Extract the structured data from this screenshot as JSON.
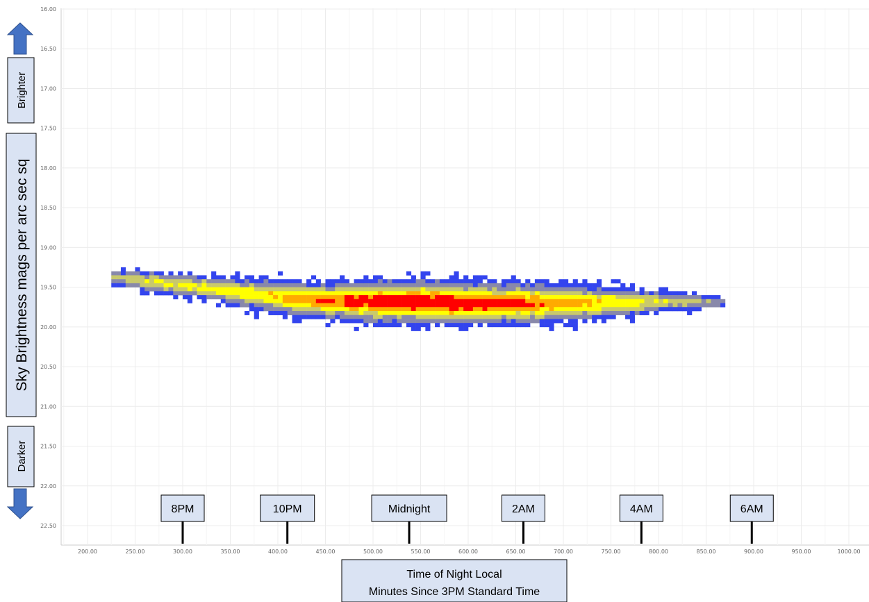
{
  "chart_data": {
    "type": "heatmap",
    "title": "",
    "xlabel": "Time of Night Local",
    "xlabel_sub": "Minutes Since 3PM Standard Time",
    "ylabel": "Sky Brightness mags per arc sec sq",
    "xlim": [
      175,
      1020
    ],
    "ylim": [
      16.0,
      22.75
    ],
    "y_inverted": true,
    "grid": true,
    "x_ticks": [
      "200.00",
      "250.00",
      "300.00",
      "350.00",
      "400.00",
      "450.00",
      "500.00",
      "550.00",
      "600.00",
      "650.00",
      "700.00",
      "750.00",
      "800.00",
      "850.00",
      "900.00",
      "950.00",
      "1000.00"
    ],
    "y_ticks": [
      "16.00",
      "16.50",
      "17.00",
      "17.50",
      "18.00",
      "18.50",
      "19.00",
      "19.50",
      "20.00",
      "20.50",
      "21.00",
      "21.50",
      "22.00",
      "22.50"
    ],
    "time_markers": [
      {
        "label": "8PM",
        "x": 300
      },
      {
        "label": "10PM",
        "x": 410
      },
      {
        "label": "Midnight",
        "x": 538
      },
      {
        "label": "2AM",
        "x": 658
      },
      {
        "label": "4AM",
        "x": 782
      },
      {
        "label": "6AM",
        "x": 898
      }
    ],
    "annotations": {
      "brighter": "Brighter",
      "darker": "Darker"
    },
    "density_profile": [
      {
        "x": 225,
        "center": 19.35,
        "spread": 0.07,
        "peak": 0.35
      },
      {
        "x": 260,
        "center": 19.4,
        "spread": 0.09,
        "peak": 0.5
      },
      {
        "x": 320,
        "center": 19.48,
        "spread": 0.1,
        "peak": 0.55
      },
      {
        "x": 380,
        "center": 19.58,
        "spread": 0.13,
        "peak": 0.65
      },
      {
        "x": 440,
        "center": 19.64,
        "spread": 0.15,
        "peak": 0.8
      },
      {
        "x": 500,
        "center": 19.66,
        "spread": 0.17,
        "peak": 0.95
      },
      {
        "x": 560,
        "center": 19.67,
        "spread": 0.18,
        "peak": 1.0
      },
      {
        "x": 620,
        "center": 19.68,
        "spread": 0.17,
        "peak": 0.95
      },
      {
        "x": 680,
        "center": 19.68,
        "spread": 0.16,
        "peak": 0.8
      },
      {
        "x": 740,
        "center": 19.67,
        "spread": 0.14,
        "peak": 0.65
      },
      {
        "x": 800,
        "center": 19.66,
        "spread": 0.09,
        "peak": 0.5
      },
      {
        "x": 840,
        "center": 19.66,
        "spread": 0.06,
        "peak": 0.35
      },
      {
        "x": 865,
        "center": 19.66,
        "spread": 0.05,
        "peak": 0.22
      }
    ],
    "colorscale": [
      "#3344ee",
      "#8888aa",
      "#c9c96b",
      "#ffff00",
      "#ffaa00",
      "#ff0000"
    ]
  }
}
